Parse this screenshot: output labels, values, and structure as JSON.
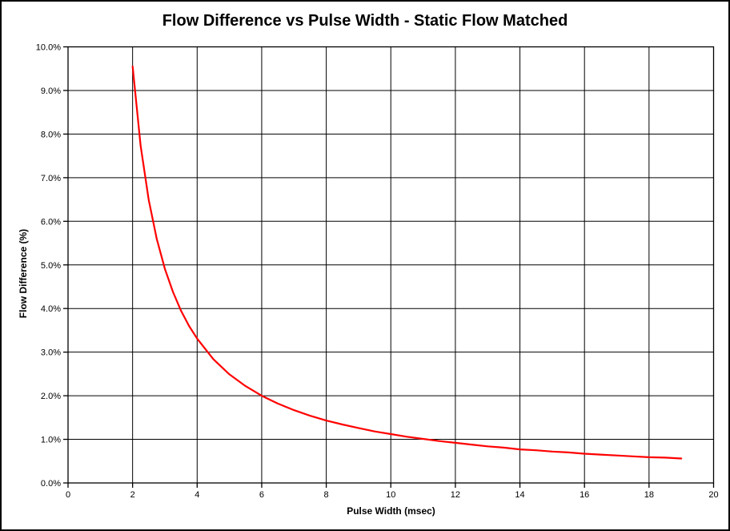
{
  "chart_data": {
    "type": "line",
    "title": "Flow Difference vs Pulse Width - Static Flow Matched",
    "xlabel": "Pulse Width (msec)",
    "ylabel": "Flow Difference (%)",
    "xlim": [
      0,
      20
    ],
    "ylim": [
      0,
      10
    ],
    "x_ticks": [
      0,
      2,
      4,
      6,
      8,
      10,
      12,
      14,
      16,
      18,
      20
    ],
    "x_tick_labels": [
      "0",
      "2",
      "4",
      "6",
      "8",
      "10",
      "12",
      "14",
      "16",
      "18",
      "20"
    ],
    "y_ticks": [
      0,
      1,
      2,
      3,
      4,
      5,
      6,
      7,
      8,
      9,
      10
    ],
    "y_tick_labels": [
      "0.0%",
      "1.0%",
      "2.0%",
      "3.0%",
      "4.0%",
      "5.0%",
      "6.0%",
      "7.0%",
      "8.0%",
      "9.0%",
      "10.0%"
    ],
    "grid": true,
    "legend": false,
    "colors": {
      "series": "#FF0000",
      "grid": "#000000",
      "plot_border": "#000000",
      "text": "#000000",
      "background": "#FFFFFF",
      "frame": "#000000"
    },
    "series": [
      {
        "name": "Flow Difference",
        "x": [
          2,
          2.25,
          2.5,
          2.75,
          3,
          3.25,
          3.5,
          3.75,
          4,
          4.5,
          5,
          5.5,
          6,
          6.5,
          7,
          7.5,
          8,
          8.5,
          9,
          9.5,
          10,
          10.5,
          11,
          11.5,
          12,
          12.5,
          13,
          13.5,
          14,
          14.5,
          15,
          15.5,
          16,
          16.5,
          17,
          17.5,
          18,
          18.5,
          19
        ],
        "y": [
          9.55,
          7.73,
          6.49,
          5.59,
          4.91,
          4.38,
          3.95,
          3.6,
          3.31,
          2.84,
          2.49,
          2.22,
          2.0,
          1.82,
          1.67,
          1.54,
          1.43,
          1.34,
          1.26,
          1.18,
          1.12,
          1.06,
          1.01,
          0.96,
          0.92,
          0.88,
          0.84,
          0.81,
          0.77,
          0.75,
          0.72,
          0.7,
          0.67,
          0.65,
          0.63,
          0.61,
          0.59,
          0.58,
          0.56
        ]
      }
    ]
  }
}
